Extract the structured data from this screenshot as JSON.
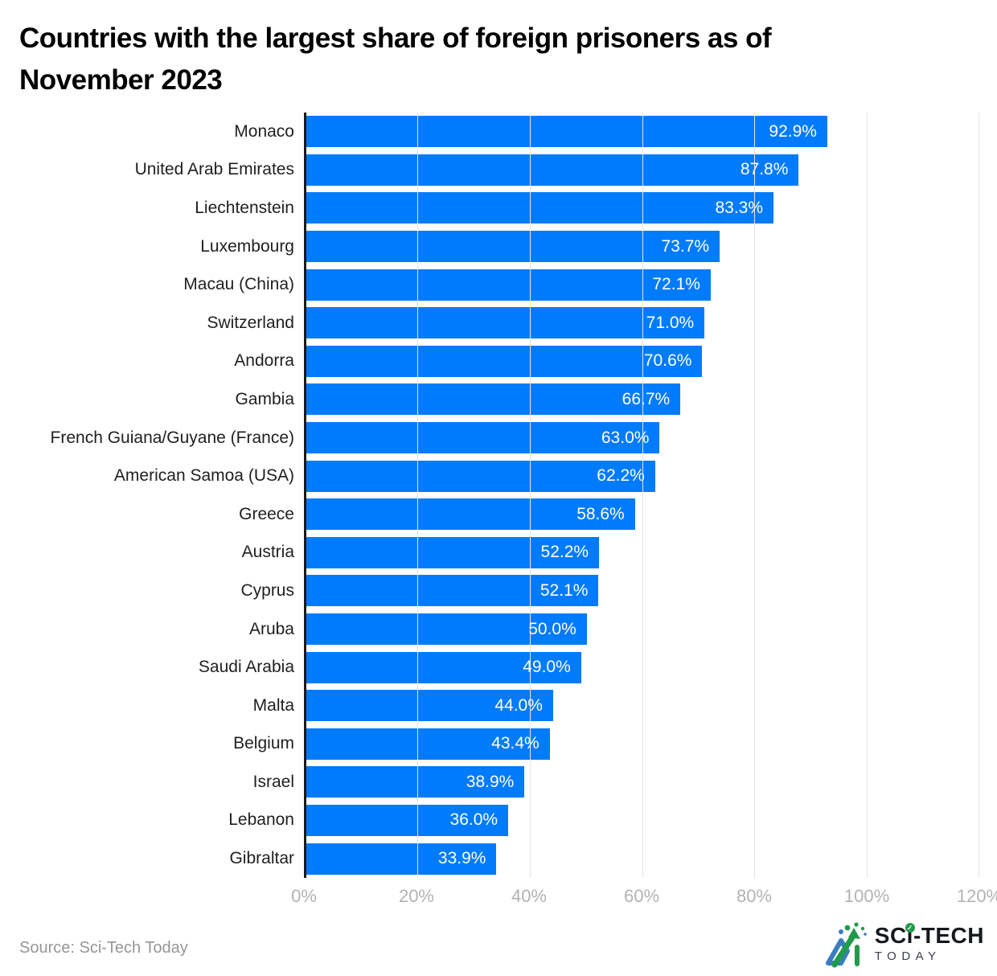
{
  "header": {
    "title_line1": "Countries with the largest share of foreign prisoners as of",
    "title_line2": "November 2023"
  },
  "chart_data": {
    "type": "bar",
    "orientation": "horizontal",
    "title": "Countries with the largest share of foreign prisoners as of November 2023",
    "categories": [
      "Monaco",
      "United Arab Emirates",
      "Liechtenstein",
      "Luxembourg",
      "Macau (China)",
      "Switzerland",
      "Andorra",
      "Gambia",
      "French Guiana/Guyane (France)",
      "American Samoa (USA)",
      "Greece",
      "Austria",
      "Cyprus",
      "Aruba",
      "Saudi Arabia",
      "Malta",
      "Belgium",
      "Israel",
      "Lebanon",
      "Gibraltar"
    ],
    "values": [
      92.9,
      87.8,
      83.3,
      73.7,
      72.1,
      71.0,
      70.6,
      66.7,
      63.0,
      62.2,
      58.6,
      52.2,
      52.1,
      50.0,
      49.0,
      44.0,
      43.4,
      38.9,
      36.0,
      33.9
    ],
    "value_labels": [
      "92.9%",
      "87.8%",
      "83.3%",
      "73.7%",
      "72.1%",
      "71.0%",
      "70.6%",
      "66.7%",
      "63.0%",
      "62.2%",
      "58.6%",
      "52.2%",
      "52.1%",
      "50.0%",
      "49.0%",
      "44.0%",
      "43.4%",
      "38.9%",
      "36.0%",
      "33.9%"
    ],
    "xlabel": "",
    "ylabel": "",
    "x_ticks": [
      "0%",
      "20%",
      "40%",
      "60%",
      "80%",
      "100%",
      "120%"
    ],
    "xlim": [
      0,
      120
    ],
    "grid": true,
    "legend": null,
    "bar_color": "#007BFC",
    "grid_color": "#e4e4e4",
    "axis_color": "#1a1a1a",
    "tick_color": "#b2b2b2",
    "value_label_color": "#ffffff"
  },
  "footer": {
    "source": "Source: Sci-Tech Today",
    "logo": {
      "title_prefix": "SC",
      "title_i": "i",
      "title_suffix": "-TECH",
      "subtitle": "TODAY",
      "green": "#1f9b4a",
      "blue": "#3b7dc2"
    }
  }
}
